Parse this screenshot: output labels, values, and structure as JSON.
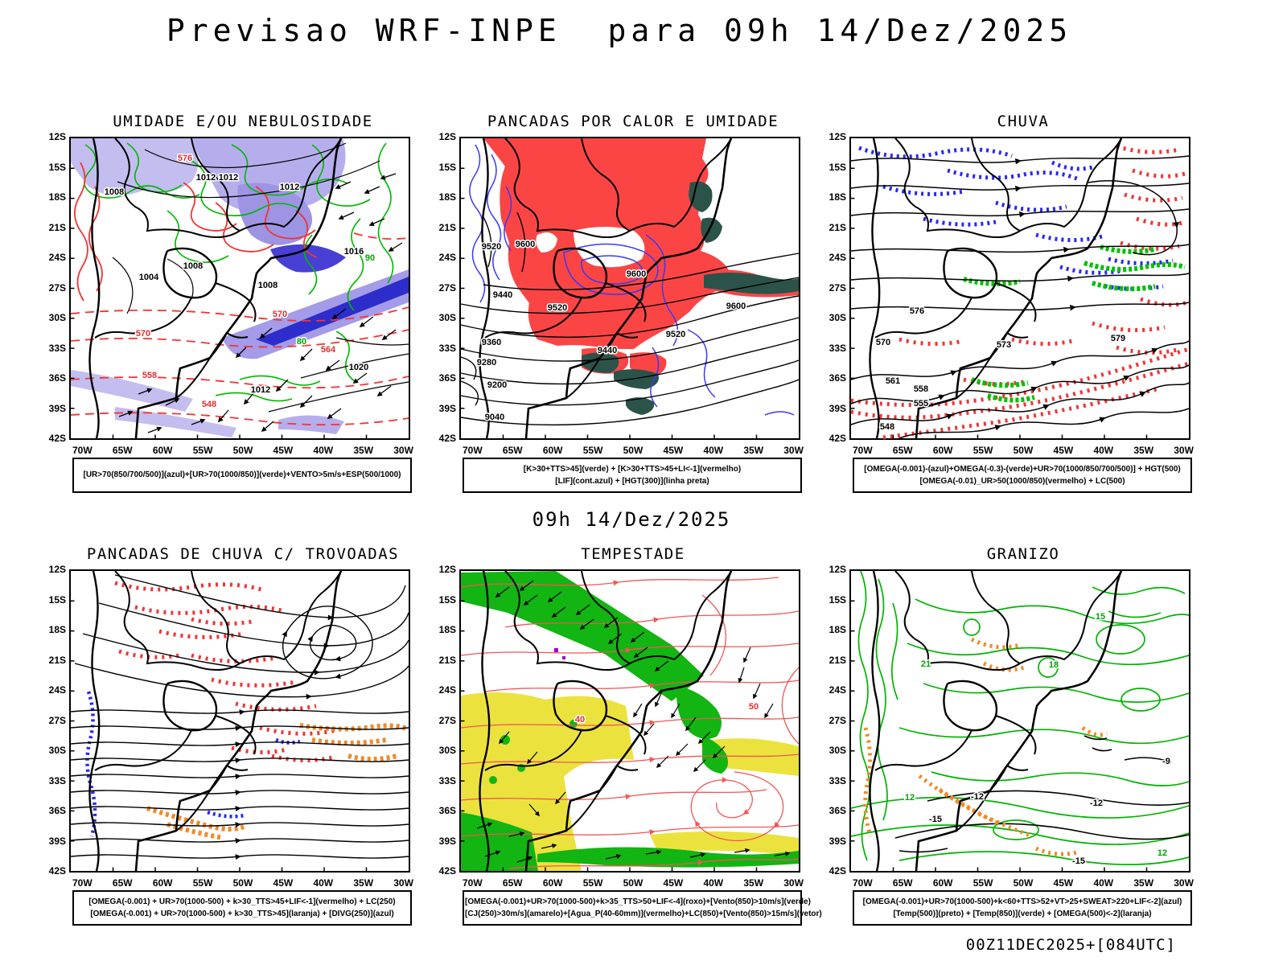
{
  "title": "Previsao WRF-INPE  para 09h 14/Dez/2025",
  "subtitle": "09h 14/Dez/2025",
  "footer": "00Z11DEC2025+[084UTC]",
  "axes": {
    "lat_ticks": [
      "12S",
      "15S",
      "18S",
      "21S",
      "24S",
      "27S",
      "30S",
      "33S",
      "36S",
      "39S",
      "42S"
    ],
    "lon_ticks": [
      "70W",
      "65W",
      "60W",
      "55W",
      "50W",
      "45W",
      "40W",
      "35W",
      "30W"
    ]
  },
  "colors": {
    "azul": "#2a2af0",
    "azul_escuro": "#4444dd",
    "lavanda": "#c3bdf0",
    "verde": "#00c000",
    "vermelho": "#fb4242",
    "vermelho_linhas": "#f25555",
    "verde_escuro_teal": "#2b5349",
    "laranja": "#ef8a28",
    "amarelo": "#ece23e",
    "roxo": "#a000c8",
    "preto": "#000000"
  },
  "panels": [
    {
      "id": "umidade",
      "title": "UMIDADE E/OU NEBULOSIDADE",
      "caption_lines": [
        "[UR>70(850/700/500)](azul)+[UR>70(1000/850)](verde)+VENTO>5m/s+ESP(500/1000)"
      ],
      "map_labels": [
        "1012",
        "1012",
        "1012",
        "1008",
        "1008",
        "1004",
        "1008",
        "1016",
        "1020",
        "1012",
        "576",
        "570",
        "570",
        "564",
        "558",
        "548",
        "90",
        "80"
      ]
    },
    {
      "id": "pancadas-calor-umidade",
      "title": "PANCADAS POR CALOR E UMIDADE",
      "caption_lines": [
        "[K>30+TTS>45](verde) + [K>30+TTS>45+LI<-1](vermelho)",
        "[LIF](cont.azul) + [HGT(300)](linha preta)"
      ],
      "map_labels": [
        "9520",
        "9600",
        "9600",
        "9440",
        "9520",
        "9600",
        "9520",
        "9360",
        "9440",
        "9280",
        "9200",
        "9040"
      ]
    },
    {
      "id": "chuva",
      "title": "CHUVA",
      "caption_lines": [
        "[OMEGA(-0.001)-(azul)+OMEGA(-0.3)-(verde)+UR>70(1000/850/700/500)] + HGT(500)",
        "[OMEGA(-0.01)_UR>50(1000/850)(vermelho) + LC(500)"
      ],
      "map_labels": [
        "576",
        "573",
        "570",
        "579",
        "561",
        "558",
        "555",
        "548"
      ]
    },
    {
      "id": "pancadas-trovoadas",
      "title": "PANCADAS DE CHUVA C/ TROVOADAS",
      "caption_lines": [
        "[OMEGA(-0.001) + UR>70(1000-500) + k>30_TTS>45+LIF<-1](vermelho) + LC(250)",
        "[OMEGA(-0.001) + UR>70(1000-500) + k>30_TTS>45](laranja) + [DIVG(250)](azul)"
      ],
      "map_labels": []
    },
    {
      "id": "tempestade",
      "title": "TEMPESTADE",
      "caption_lines": [
        "[OMEGA(-0.001)+UR>70(1000-500)+k>35_TTS>50+LIF<-4](roxo)+[Vento(850)>10m/s](verde)",
        "[CJ(250)>30m/s](amarelo)+[Agua_P(40-60mm)](vermelho)+LC(850)+[Vento(850)>15m/s](vetor)"
      ],
      "map_labels": [
        "40",
        "50"
      ]
    },
    {
      "id": "granizo",
      "title": "GRANIZO",
      "caption_lines": [
        "[OMEGA(-0.001)+UR>70(1000-500)+k<60+TTS>52+VT>25+SWEAT>220+LIF<-2](azul)",
        "[Temp(500)](preto) + [Temp(850)](verde) + [OMEGA(500)<-2](laranja)"
      ],
      "map_labels": [
        "21",
        "18",
        "15",
        "12",
        "12",
        "-12",
        "-12",
        "-15",
        "-9",
        "-15"
      ]
    }
  ]
}
